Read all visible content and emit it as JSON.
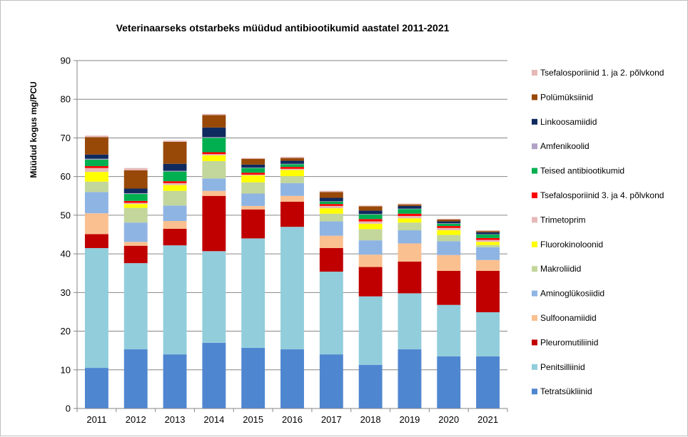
{
  "chart_data": {
    "type": "bar",
    "stacked": true,
    "title": "Veterinaarseks otstarbeks müüdud antibiootikumid aastatel 2011-2021",
    "xlabel": "",
    "ylabel": "Müüdud kogus mg/PCU",
    "ylim": [
      0,
      90
    ],
    "yticks": [
      0,
      10,
      20,
      30,
      40,
      50,
      60,
      70,
      80,
      90
    ],
    "grid": true,
    "legend_position": "right",
    "categories": [
      "2011",
      "2012",
      "2013",
      "2014",
      "2015",
      "2016",
      "2017",
      "2018",
      "2019",
      "2020",
      "2021"
    ],
    "series": [
      {
        "name": "Tetratsükliinid",
        "color": "#4f86d0",
        "values": [
          10.5,
          15.3,
          14.0,
          17.0,
          15.7,
          15.3,
          14.0,
          11.3,
          15.3,
          13.5,
          13.5
        ]
      },
      {
        "name": "Penitsilliinid",
        "color": "#92cddc",
        "values": [
          31.0,
          22.3,
          28.2,
          23.7,
          28.3,
          31.7,
          21.4,
          17.7,
          14.5,
          13.3,
          11.4
        ]
      },
      {
        "name": "Pleuromutiliinid",
        "color": "#c00000",
        "values": [
          3.6,
          4.5,
          4.3,
          14.3,
          7.5,
          6.5,
          6.1,
          7.6,
          8.2,
          8.8,
          10.7
        ]
      },
      {
        "name": "Sulfoonamiidid",
        "color": "#fac090",
        "values": [
          5.4,
          1.0,
          2.0,
          1.3,
          0.9,
          1.5,
          3.2,
          3.2,
          4.7,
          4.1,
          2.8
        ]
      },
      {
        "name": "Aminoglükosiidid",
        "color": "#8eb4e3",
        "values": [
          5.5,
          5.0,
          4.0,
          3.2,
          3.2,
          3.3,
          3.7,
          3.7,
          3.4,
          3.6,
          3.3
        ]
      },
      {
        "name": "Makroliidid",
        "color": "#c3d69b",
        "values": [
          2.7,
          3.8,
          3.8,
          4.5,
          2.9,
          1.8,
          2.0,
          2.9,
          2.0,
          1.6,
          0.6
        ]
      },
      {
        "name": "Fluorokinoloonid",
        "color": "#ffff00",
        "values": [
          2.5,
          1.0,
          1.5,
          1.5,
          1.8,
          1.6,
          1.4,
          1.4,
          1.1,
          1.2,
          0.8
        ]
      },
      {
        "name": "Trimetoprim",
        "color": "#e6b9b8",
        "values": [
          1.0,
          0.3,
          0.5,
          0.3,
          0.2,
          0.3,
          0.6,
          0.6,
          0.6,
          0.6,
          0.5
        ]
      },
      {
        "name": "Tsefalosporiinid 3. ja 4. põlvkond",
        "color": "#ff0000",
        "values": [
          0.5,
          0.5,
          0.5,
          0.5,
          0.5,
          0.5,
          0.5,
          0.6,
          0.6,
          0.5,
          0.5
        ]
      },
      {
        "name": "Teised antibiootikumid",
        "color": "#00b050",
        "values": [
          1.7,
          1.8,
          2.5,
          3.7,
          1.2,
          0.7,
          0.6,
          1.2,
          1.2,
          0.6,
          0.9
        ]
      },
      {
        "name": "Amfenikoolid",
        "color": "#b3a2c7",
        "values": [
          0.2,
          0.2,
          0.2,
          0.2,
          0.1,
          0.1,
          0.1,
          0.1,
          0.1,
          0.1,
          0.1
        ]
      },
      {
        "name": "Linkoosamiidid",
        "color": "#0f2a5e",
        "values": [
          1.1,
          1.2,
          1.8,
          2.5,
          0.8,
          0.8,
          0.9,
          0.9,
          0.7,
          0.5,
          0.5
        ]
      },
      {
        "name": "Polümüksiinid",
        "color": "#984807",
        "values": [
          4.5,
          4.7,
          5.7,
          3.2,
          1.5,
          0.7,
          1.5,
          1.1,
          0.4,
          0.5,
          0.3
        ]
      },
      {
        "name": "Tsefalosporiinid 1. ja 2. põlvkond",
        "color": "#e6b9b8",
        "values": [
          0.4,
          0.6,
          0.3,
          0.3,
          0.2,
          0.3,
          0.3,
          0.2,
          0.2,
          0.2,
          0.2
        ]
      }
    ]
  }
}
